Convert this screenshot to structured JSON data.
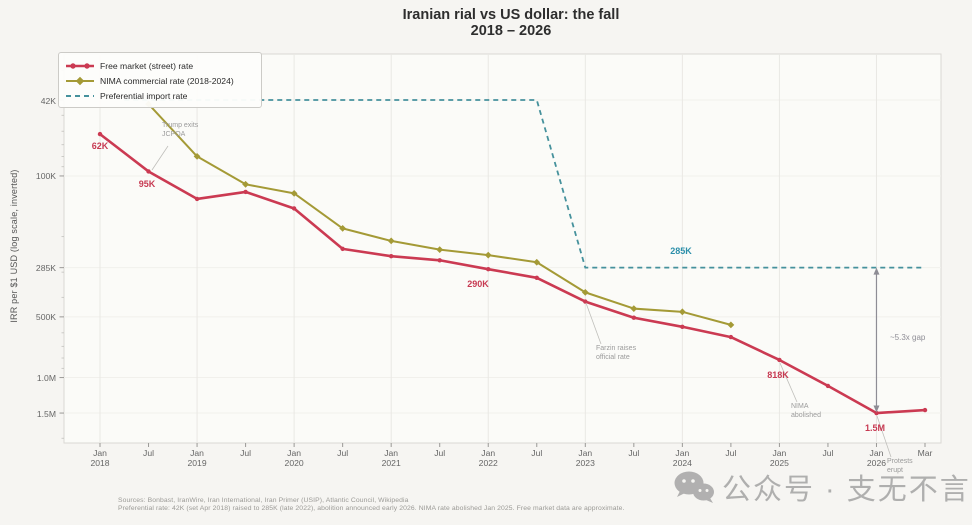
{
  "title": {
    "line1": "Iranian rial vs US dollar: the fall",
    "line2": "2018 – 2026"
  },
  "legend": {
    "items": [
      {
        "label": "Free market (street) rate"
      },
      {
        "label": "NIMA commercial rate (2018-2024)"
      },
      {
        "label": "Preferential import rate"
      }
    ]
  },
  "y_axis": {
    "label": "IRR per $1 USD (log scale, inverted)",
    "ticks": [
      {
        "label": "42K",
        "value": 42000
      },
      {
        "label": "100K",
        "value": 100000
      },
      {
        "label": "285K",
        "value": 285000
      },
      {
        "label": "500K",
        "value": 500000
      },
      {
        "label": "1.0M",
        "value": 1000000
      },
      {
        "label": "1.5M",
        "value": 1500000
      }
    ],
    "minor_tick_values": [
      30000,
      40000,
      50000,
      60000,
      70000,
      80000,
      90000,
      200000,
      300000,
      400000,
      600000,
      700000,
      800000,
      900000,
      2000000
    ]
  },
  "x_axis": {
    "ticks": [
      {
        "l1": "Jan",
        "l2": "2018"
      },
      {
        "l1": "Jul",
        "l2": ""
      },
      {
        "l1": "Jan",
        "l2": "2019"
      },
      {
        "l1": "Jul",
        "l2": ""
      },
      {
        "l1": "Jan",
        "l2": "2020"
      },
      {
        "l1": "Jul",
        "l2": ""
      },
      {
        "l1": "Jan",
        "l2": "2021"
      },
      {
        "l1": "Jul",
        "l2": ""
      },
      {
        "l1": "Jan",
        "l2": "2022"
      },
      {
        "l1": "Jul",
        "l2": ""
      },
      {
        "l1": "Jan",
        "l2": "2023"
      },
      {
        "l1": "Jul",
        "l2": ""
      },
      {
        "l1": "Jan",
        "l2": "2024"
      },
      {
        "l1": "Jul",
        "l2": ""
      },
      {
        "l1": "Jan",
        "l2": "2025"
      },
      {
        "l1": "Jul",
        "l2": ""
      },
      {
        "l1": "Jan",
        "l2": "2026"
      },
      {
        "l1": "Mar",
        "l2": ""
      }
    ]
  },
  "point_labels": {
    "p62k": "62K",
    "p95k": "95K",
    "p290k": "290K",
    "p818k": "818K",
    "p15m": "1.5M",
    "p285k": "285K"
  },
  "annotations": {
    "trump": {
      "line1": "Trump exits",
      "line2": "JCPOA"
    },
    "farzin": {
      "line1": "Farzin raises",
      "line2": "official rate"
    },
    "nima": {
      "line1": "NIMA",
      "line2": "abolished"
    },
    "protests": {
      "line1": "Protests",
      "line2": "erupt"
    },
    "gap": {
      "label": "~5.3x gap"
    }
  },
  "footnote": {
    "line1": "Sources: Bonbast, IranWire, Iran International, Iran Primer (USIP), Atlantic Council, Wikipedia",
    "line2": "Preferential rate: 42K (set Apr 2018) raised to 285K (late 2022), abolition announced early 2026. NIMA rate abolished Jan 2025. Free market data are approximate."
  },
  "watermark": {
    "text": "公众号 · 支无不言",
    "icon": "wechat-icon"
  },
  "chart_data": {
    "type": "line",
    "title": "Iranian rial vs US dollar: the fall 2018 – 2026",
    "xlabel": "",
    "ylabel": "IRR per $1 USD (log scale, inverted)",
    "y_scale": "log inverted",
    "ylim": [
      25000,
      2100000
    ],
    "grid": "vertical at January ticks, faint horizontal at labeled ticks",
    "legend_position": "upper-left",
    "categories": [
      "Jan 2018",
      "Jul 2018",
      "Jan 2019",
      "Jul 2019",
      "Jan 2020",
      "Jul 2020",
      "Jan 2021",
      "Jul 2021",
      "Jan 2022",
      "Jul 2022",
      "Jan 2023",
      "Jul 2023",
      "Jan 2024",
      "Jul 2024",
      "Jan 2025",
      "Jul 2025",
      "Jan 2026",
      "Mar 2026"
    ],
    "series": [
      {
        "name": "Free market (street) rate",
        "color": "#cb3a52",
        "style": "solid",
        "marker": "circle",
        "values": [
          62000,
          95000,
          130000,
          120000,
          145000,
          230000,
          250000,
          262000,
          290000,
          320000,
          420000,
          505000,
          560000,
          630000,
          818000,
          1100000,
          1500000,
          1450000
        ]
      },
      {
        "name": "NIMA commercial rate (2018-2024)",
        "color": "#a49a36",
        "style": "solid",
        "marker": "diamond",
        "values": [
          null,
          44000,
          80000,
          110000,
          122000,
          182000,
          210000,
          232000,
          247000,
          268000,
          378000,
          455000,
          472000,
          548000,
          null,
          null,
          null,
          null
        ]
      },
      {
        "name": "Preferential import rate",
        "color": "#45919c",
        "style": "dashed",
        "marker": "none",
        "values": [
          42000,
          42000,
          42000,
          42000,
          42000,
          42000,
          42000,
          42000,
          42000,
          42000,
          285000,
          285000,
          285000,
          285000,
          285000,
          285000,
          285000,
          285000
        ],
        "note": "flat 42K from Apr 2018 until Jul 2022, step down to 285K at Jan 2023, flat through Mar 2026"
      }
    ],
    "annotated_points": [
      {
        "series": "Free market (street) rate",
        "category": "Jan 2018",
        "label": "62K"
      },
      {
        "series": "Free market (street) rate",
        "category": "Jul 2018",
        "label": "95K"
      },
      {
        "series": "Free market (street) rate",
        "category": "Jan 2022",
        "label": "290K"
      },
      {
        "series": "Free market (street) rate",
        "category": "Jan 2025",
        "label": "818K"
      },
      {
        "series": "Free market (street) rate",
        "category": "Jan 2026",
        "label": "1.5M"
      },
      {
        "series": "Preferential import rate",
        "category": "Jan 2024",
        "label": "285K"
      },
      {
        "series": "gap-arrow",
        "category": "Jan 2026",
        "label": "~5.3x gap",
        "from": 285000,
        "to": 1500000
      }
    ]
  },
  "colors": {
    "free_market": "#cb3a52",
    "nima": "#a49a36",
    "preferential": "#45919c",
    "preferential_label": "#2c8faa",
    "annotation_grey": "#9b9b9b",
    "background": "#f6f5f2",
    "plot_background": "#fbfbf8"
  }
}
